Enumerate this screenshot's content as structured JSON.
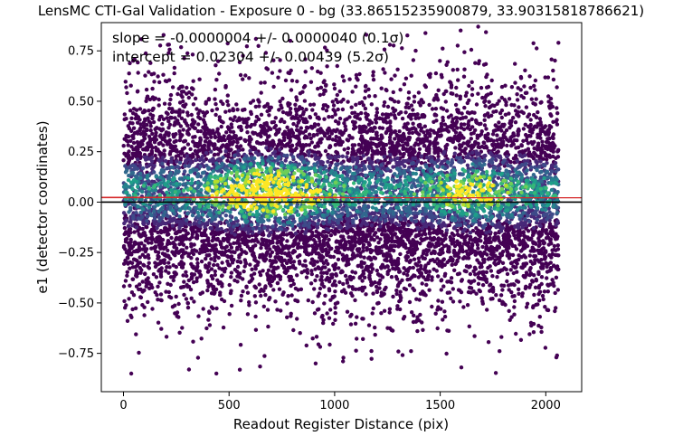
{
  "chart_data": {
    "type": "scatter",
    "title": "LensMC CTI-Gal Validation - Exposure 0 - bg (33.86515235900879, 33.90315818786621)",
    "xlabel": "Readout Register Distance (pix)",
    "ylabel": "e1 (detector coordinates)",
    "xlim": [
      -105,
      2170
    ],
    "ylim": [
      -0.94,
      0.89
    ],
    "xticks": [
      0,
      500,
      1000,
      1500,
      2000
    ],
    "xtick_labels": [
      "0",
      "500",
      "1000",
      "1500",
      "2000"
    ],
    "yticks": [
      -0.75,
      -0.5,
      -0.25,
      0.0,
      0.25,
      0.5,
      0.75
    ],
    "ytick_labels": [
      "−0.75",
      "−0.50",
      "−0.25",
      "0.00",
      "0.25",
      "0.50",
      "0.75"
    ],
    "grid": false,
    "colormap": "viridis",
    "point_count_approx": 9000,
    "x_range_points": [
      0,
      2060
    ],
    "y_spread_sd": 0.26,
    "points_sample": [
      {
        "x": 5,
        "y": 0.41
      },
      {
        "x": 210,
        "y": 0.78
      },
      {
        "x": 440,
        "y": -0.85
      },
      {
        "x": 790,
        "y": 0.8
      },
      {
        "x": 910,
        "y": -0.8
      },
      {
        "x": 1150,
        "y": 0.83
      },
      {
        "x": 1680,
        "y": 0.87
      },
      {
        "x": 1600,
        "y": -0.82
      },
      {
        "x": 2060,
        "y": 0.79
      },
      {
        "x": 2050,
        "y": -0.77
      },
      {
        "x": 310,
        "y": -0.83
      },
      {
        "x": 600,
        "y": 0.1
      }
    ],
    "annotations": {
      "slope": "slope = -0.0000004 +/- 0.0000040 (0.1σ)",
      "intercept": "intercept = 0.02304 +/- 0.00439 (5.2σ)"
    },
    "lines": [
      {
        "label": "zero",
        "y": 0.0,
        "color": "#000000"
      },
      {
        "label": "fit",
        "y": 0.02304,
        "slope": -4e-07,
        "color": "#d62728"
      }
    ]
  }
}
